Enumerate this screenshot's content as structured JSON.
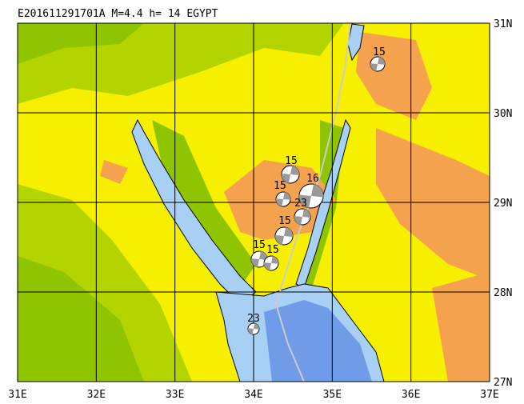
{
  "title": "E201611291701A  M=4.4  h= 14  EGYPT",
  "x_labels": [
    "31E",
    "32E",
    "33E",
    "34E",
    "35E",
    "36E",
    "37E"
  ],
  "y_labels": [
    "31N",
    "30N",
    "29N",
    "28N",
    "27N"
  ],
  "events": [
    {
      "label": "15"
    },
    {
      "label": "15"
    },
    {
      "label": "16"
    },
    {
      "label": "15"
    },
    {
      "label": "23"
    },
    {
      "label": "15"
    },
    {
      "label": "15"
    },
    {
      "label": "15"
    },
    {
      "label": "23"
    }
  ]
}
